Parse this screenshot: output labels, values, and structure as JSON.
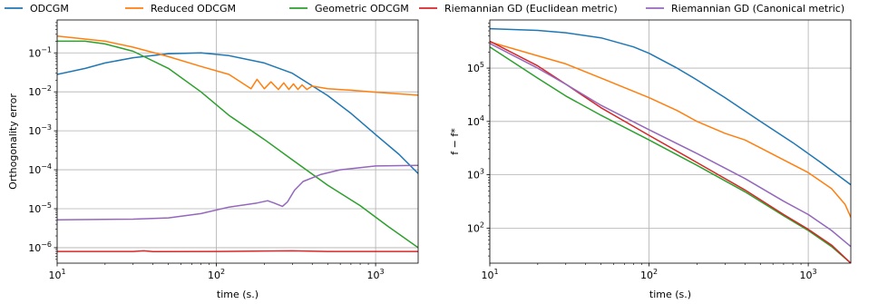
{
  "chart_data": [
    {
      "type": "line",
      "xlabel": "time (s.)",
      "ylabel": "Orthogonality error",
      "xscale": "log",
      "yscale": "log",
      "xlim": [
        10,
        1850
      ],
      "ylim": [
        4e-07,
        0.7
      ],
      "grid": true,
      "xticks": [
        {
          "value": 10,
          "base": "10",
          "exp": "1"
        },
        {
          "value": 100,
          "base": "10",
          "exp": "2"
        },
        {
          "value": 1000,
          "base": "10",
          "exp": "3"
        }
      ],
      "yticks": [
        {
          "value": 1e-06,
          "base": "10",
          "exp": "−6"
        },
        {
          "value": 1e-05,
          "base": "10",
          "exp": "−5"
        },
        {
          "value": 0.0001,
          "base": "10",
          "exp": "−4"
        },
        {
          "value": 0.001,
          "base": "10",
          "exp": "−3"
        },
        {
          "value": 0.01,
          "base": "10",
          "exp": "−2"
        },
        {
          "value": 0.1,
          "base": "10",
          "exp": "−1"
        }
      ],
      "series": [
        {
          "name": "ODCGM",
          "color": "#1f77b4",
          "points": [
            [
              10,
              0.028
            ],
            [
              15,
              0.04
            ],
            [
              20,
              0.055
            ],
            [
              30,
              0.075
            ],
            [
              50,
              0.095
            ],
            [
              80,
              0.1
            ],
            [
              120,
              0.085
            ],
            [
              200,
              0.055
            ],
            [
              300,
              0.03
            ],
            [
              500,
              0.008
            ],
            [
              700,
              0.0028
            ],
            [
              1000,
              0.0008
            ],
            [
              1400,
              0.00025
            ],
            [
              1850,
              8e-05
            ]
          ]
        },
        {
          "name": "Reduced ODCGM",
          "color": "#ff7f0e",
          "points": [
            [
              10,
              0.27
            ],
            [
              20,
              0.2
            ],
            [
              30,
              0.14
            ],
            [
              50,
              0.08
            ],
            [
              80,
              0.045
            ],
            [
              120,
              0.028
            ],
            [
              165,
              0.012
            ],
            [
              180,
              0.021
            ],
            [
              200,
              0.012
            ],
            [
              220,
              0.018
            ],
            [
              245,
              0.0115
            ],
            [
              265,
              0.017
            ],
            [
              285,
              0.0115
            ],
            [
              305,
              0.016
            ],
            [
              325,
              0.0115
            ],
            [
              345,
              0.015
            ],
            [
              370,
              0.0115
            ],
            [
              400,
              0.014
            ],
            [
              500,
              0.012
            ],
            [
              700,
              0.011
            ],
            [
              1000,
              0.0098
            ],
            [
              1850,
              0.0082
            ]
          ]
        },
        {
          "name": "Geometric ODCGM",
          "color": "#2ca02c",
          "points": [
            [
              10,
              0.2
            ],
            [
              15,
              0.2
            ],
            [
              20,
              0.17
            ],
            [
              30,
              0.11
            ],
            [
              50,
              0.04
            ],
            [
              80,
              0.01
            ],
            [
              120,
              0.0025
            ],
            [
              200,
              0.0006
            ],
            [
              300,
              0.00018
            ],
            [
              500,
              4e-05
            ],
            [
              800,
              1.2e-05
            ],
            [
              1200,
              3.5e-06
            ],
            [
              1850,
              1e-06
            ]
          ]
        },
        {
          "name": "Riemannian GD (Euclidean metric)",
          "color": "#d62728",
          "points": [
            [
              10,
              8e-07
            ],
            [
              30,
              8e-07
            ],
            [
              35,
              8.3e-07
            ],
            [
              40,
              7.9e-07
            ],
            [
              100,
              8e-07
            ],
            [
              200,
              8.2e-07
            ],
            [
              300,
              8.3e-07
            ],
            [
              500,
              8e-07
            ],
            [
              1000,
              8e-07
            ],
            [
              1850,
              8e-07
            ]
          ]
        },
        {
          "name": "Riemannian GD (Canonical metric)",
          "color": "#9467bd",
          "points": [
            [
              10,
              5.2e-06
            ],
            [
              30,
              5.4e-06
            ],
            [
              50,
              5.8e-06
            ],
            [
              80,
              7.5e-06
            ],
            [
              120,
              1.1e-05
            ],
            [
              180,
              1.4e-05
            ],
            [
              210,
              1.6e-05
            ],
            [
              230,
              1.4e-05
            ],
            [
              260,
              1.15e-05
            ],
            [
              280,
              1.5e-05
            ],
            [
              310,
              3e-05
            ],
            [
              350,
              5e-05
            ],
            [
              450,
              7.5e-05
            ],
            [
              600,
              0.0001
            ],
            [
              1000,
              0.000125
            ],
            [
              1850,
              0.00013
            ]
          ]
        }
      ]
    },
    {
      "type": "line",
      "xlabel": "time (s.)",
      "ylabel": "f − f*",
      "xscale": "log",
      "yscale": "log",
      "xlim": [
        10,
        1850
      ],
      "ylim": [
        22,
        800000
      ],
      "grid": true,
      "xticks": [
        {
          "value": 10,
          "base": "10",
          "exp": "1"
        },
        {
          "value": 100,
          "base": "10",
          "exp": "2"
        },
        {
          "value": 1000,
          "base": "10",
          "exp": "3"
        }
      ],
      "yticks": [
        {
          "value": 100,
          "base": "10",
          "exp": "2"
        },
        {
          "value": 1000,
          "base": "10",
          "exp": "3"
        },
        {
          "value": 10000,
          "base": "10",
          "exp": "4"
        },
        {
          "value": 100000,
          "base": "10",
          "exp": "5"
        }
      ],
      "series": [
        {
          "name": "ODCGM",
          "color": "#1f77b4",
          "points": [
            [
              10,
              550000
            ],
            [
              20,
              510000
            ],
            [
              30,
              460000
            ],
            [
              50,
              370000
            ],
            [
              80,
              250000
            ],
            [
              100,
              190000
            ],
            [
              150,
              100000
            ],
            [
              200,
              60000
            ],
            [
              300,
              28000
            ],
            [
              500,
              10000
            ],
            [
              800,
              4000
            ],
            [
              1200,
              1700
            ],
            [
              1850,
              650
            ]
          ]
        },
        {
          "name": "Reduced ODCGM",
          "color": "#ff7f0e",
          "points": [
            [
              10,
              310000
            ],
            [
              20,
              170000
            ],
            [
              30,
              120000
            ],
            [
              50,
              65000
            ],
            [
              100,
              28000
            ],
            [
              150,
              16000
            ],
            [
              200,
              10000
            ],
            [
              300,
              6000
            ],
            [
              400,
              4500
            ],
            [
              500,
              3200
            ],
            [
              700,
              1900
            ],
            [
              1000,
              1100
            ],
            [
              1400,
              550
            ],
            [
              1700,
              280
            ],
            [
              1850,
              160
            ]
          ]
        },
        {
          "name": "Geometric ODCGM",
          "color": "#2ca02c",
          "points": [
            [
              10,
              250000
            ],
            [
              20,
              65000
            ],
            [
              30,
              30000
            ],
            [
              50,
              13000
            ],
            [
              100,
              4500
            ],
            [
              200,
              1500
            ],
            [
              400,
              480
            ],
            [
              700,
              170
            ],
            [
              1000,
              90
            ],
            [
              1400,
              45
            ],
            [
              1850,
              22
            ]
          ]
        },
        {
          "name": "Riemannian GD (Euclidean metric)",
          "color": "#d62728",
          "points": [
            [
              10,
              320000
            ],
            [
              20,
              110000
            ],
            [
              30,
              50000
            ],
            [
              50,
              18000
            ],
            [
              100,
              5500
            ],
            [
              200,
              1700
            ],
            [
              400,
              520
            ],
            [
              700,
              180
            ],
            [
              1000,
              95
            ],
            [
              1400,
              48
            ],
            [
              1850,
              22
            ]
          ]
        },
        {
          "name": "Riemannian GD (Canonical metric)",
          "color": "#9467bd",
          "points": [
            [
              10,
              290000
            ],
            [
              20,
              100000
            ],
            [
              30,
              50000
            ],
            [
              50,
              20000
            ],
            [
              100,
              7000
            ],
            [
              200,
              2500
            ],
            [
              400,
              850
            ],
            [
              700,
              320
            ],
            [
              1000,
              180
            ],
            [
              1400,
              90
            ],
            [
              1850,
              45
            ]
          ]
        }
      ]
    }
  ]
}
